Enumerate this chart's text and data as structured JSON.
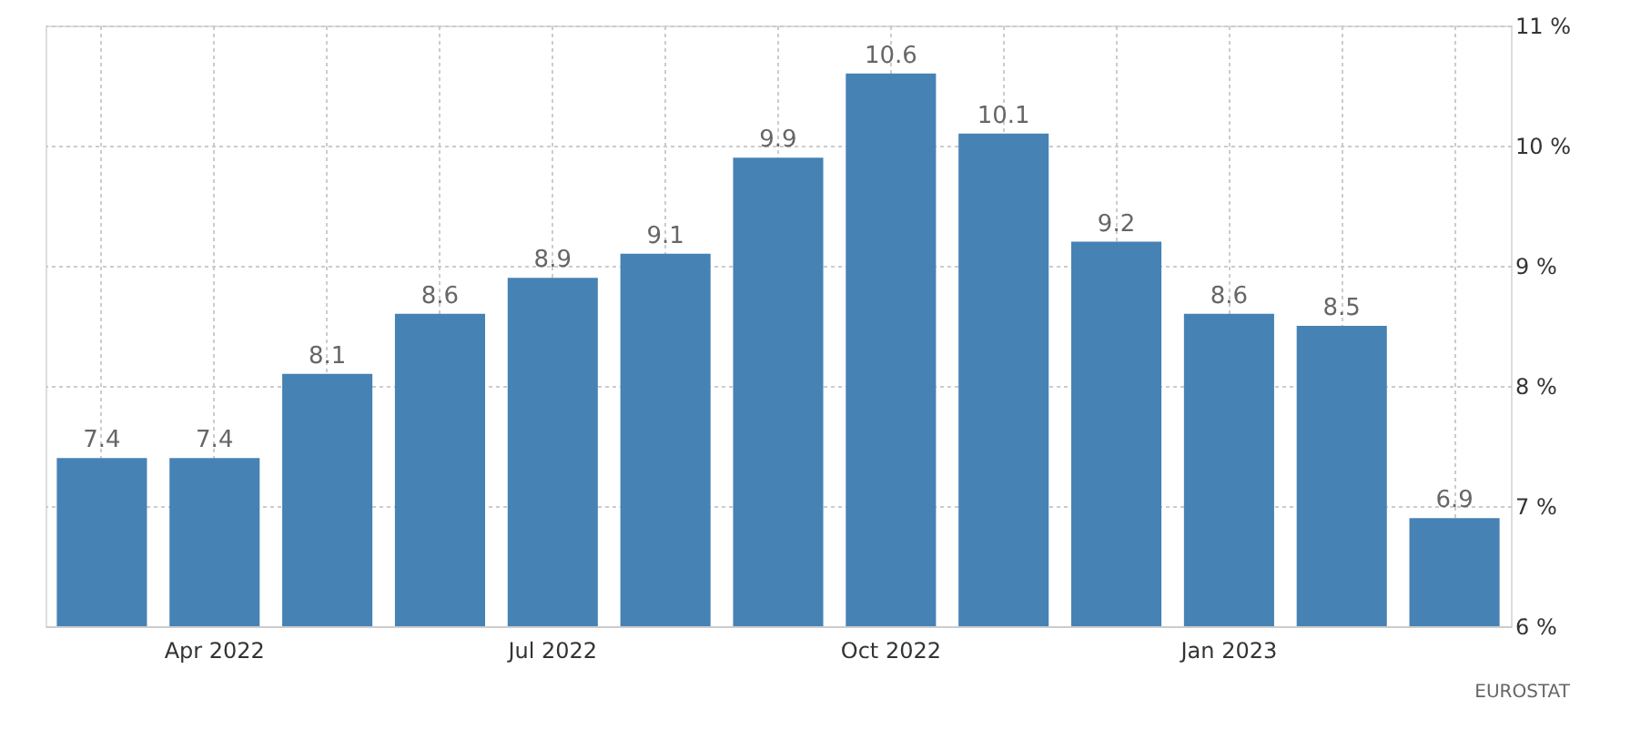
{
  "chart_data": {
    "type": "bar",
    "categories": [
      null,
      "Apr 2022",
      null,
      null,
      "Jul 2022",
      null,
      null,
      "Oct 2022",
      null,
      null,
      "Jan 2023",
      null,
      null
    ],
    "values": [
      7.4,
      7.4,
      8.1,
      8.6,
      8.9,
      9.1,
      9.9,
      10.6,
      10.1,
      9.2,
      8.6,
      8.5,
      6.9
    ],
    "color": "#4682b4",
    "ylim": [
      6,
      11
    ],
    "yticks": [
      {
        "value": 6,
        "label": "6 %"
      },
      {
        "value": 7,
        "label": "7 %"
      },
      {
        "value": 8,
        "label": "8 %"
      },
      {
        "value": 9,
        "label": "9 %"
      },
      {
        "value": 10,
        "label": "10 %"
      },
      {
        "value": 11,
        "label": "11 %"
      }
    ],
    "data_labels": true,
    "grid": true,
    "annotations": [
      "EUROSTAT"
    ]
  }
}
